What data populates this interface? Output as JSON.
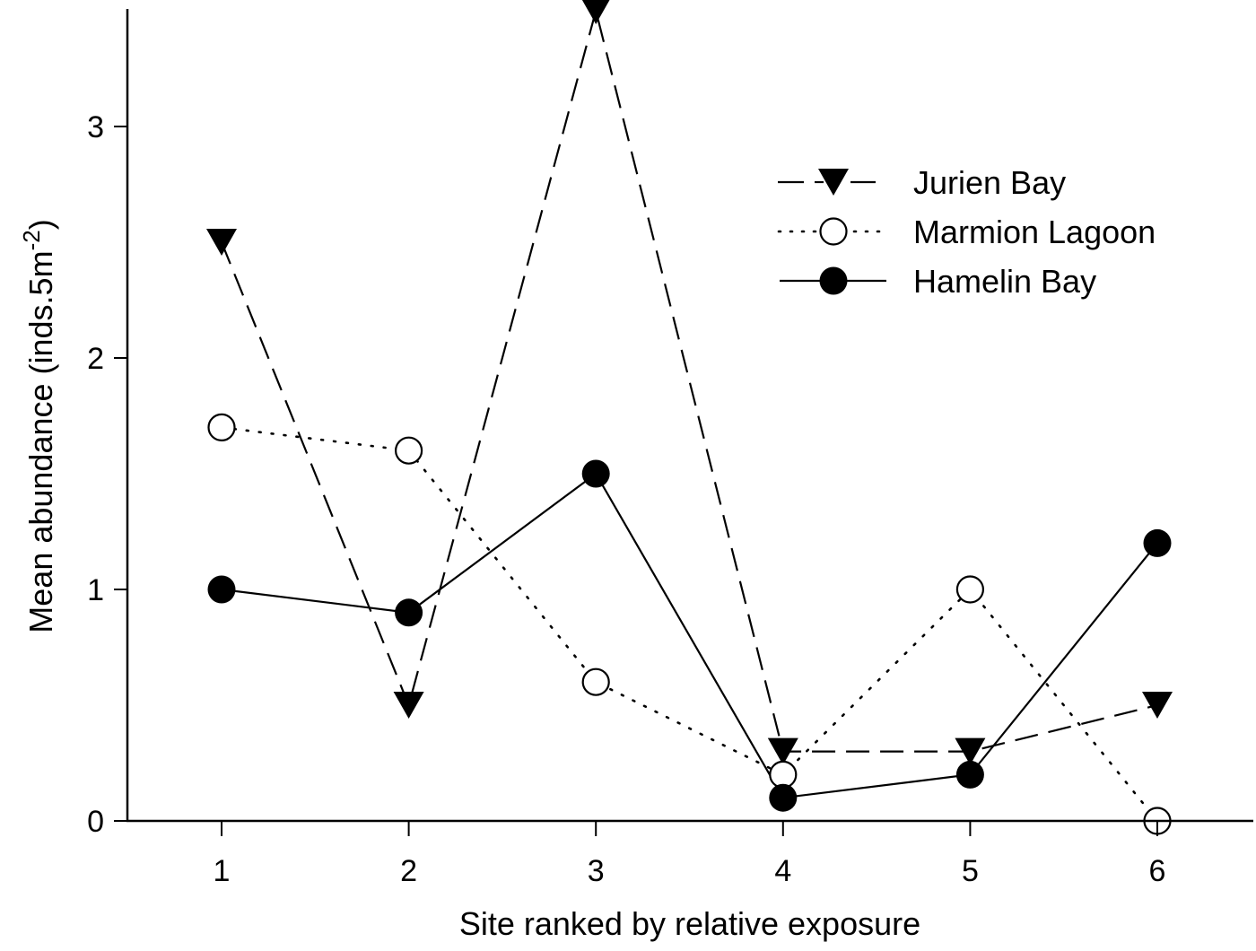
{
  "chart_data": {
    "type": "line",
    "title": "",
    "xlabel": "Site ranked by relative exposure",
    "ylabel": "Mean abundance (inds.5m-2)",
    "ylabel_parts": {
      "main": "Mean abundance (inds.5m",
      "superscript": "-2",
      "close": ")"
    },
    "x": [
      1,
      2,
      3,
      4,
      5,
      6
    ],
    "x_tick_labels": [
      "1",
      "2",
      "3",
      "4",
      "5",
      "6"
    ],
    "y_ticks": [
      0,
      1,
      2,
      3
    ],
    "y_tick_labels": [
      "0",
      "1",
      "2",
      "3"
    ],
    "xlim": [
      0.5,
      7.0
    ],
    "ylim": [
      0,
      3.5
    ],
    "grid": false,
    "legend_position": "upper right",
    "series": [
      {
        "name": "Jurien Bay",
        "marker": "filled-down-triangle",
        "line": "dashed",
        "values": [
          2.5,
          0.5,
          3.5,
          0.3,
          0.3,
          0.5
        ]
      },
      {
        "name": "Marmion Lagoon",
        "marker": "open-circle",
        "line": "dotted",
        "values": [
          1.7,
          1.6,
          0.6,
          0.2,
          1.0,
          0.0
        ]
      },
      {
        "name": "Hamelin Bay",
        "marker": "filled-circle",
        "line": "solid",
        "values": [
          1.0,
          0.9,
          1.5,
          0.1,
          0.2,
          1.2
        ]
      }
    ],
    "colors": {
      "line": "#000000",
      "background": "#ffffff"
    }
  }
}
